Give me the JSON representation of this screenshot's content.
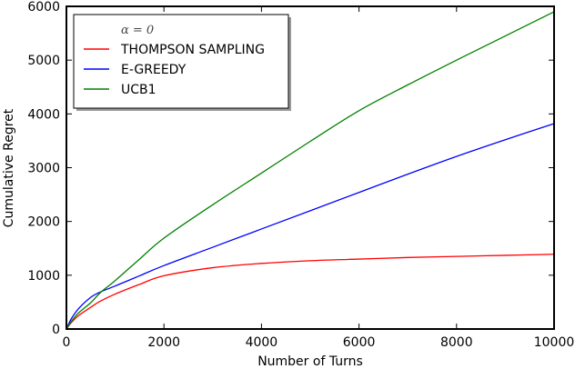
{
  "chart_data": {
    "type": "line",
    "title": "",
    "xlabel": "Number of Turns",
    "ylabel": "Cumulative Regret",
    "xlim": [
      0,
      10000
    ],
    "ylim": [
      0,
      6000
    ],
    "xticks": [
      0,
      2000,
      4000,
      6000,
      8000,
      10000
    ],
    "yticks": [
      0,
      1000,
      2000,
      3000,
      4000,
      5000,
      6000
    ],
    "grid": false,
    "legend_position": "upper left",
    "legend_title": "α = 0",
    "x": [
      0,
      100,
      250,
      500,
      700,
      1000,
      1500,
      2000,
      3000,
      4000,
      5000,
      6000,
      7000,
      8000,
      9000,
      10000
    ],
    "series": [
      {
        "name": "THOMPSON SAMPLING",
        "color": "#ff0000",
        "values": [
          0,
          120,
          250,
          405,
          520,
          650,
          830,
          990,
          1140,
          1220,
          1270,
          1300,
          1330,
          1350,
          1370,
          1390
        ]
      },
      {
        "name": "E-GREEDY",
        "color": "#0000ff",
        "values": [
          0,
          190,
          380,
          590,
          690,
          800,
          990,
          1180,
          1520,
          1860,
          2200,
          2540,
          2880,
          3210,
          3520,
          3820
        ]
      },
      {
        "name": "UCB1",
        "color": "#008000",
        "values": [
          0,
          140,
          300,
          490,
          680,
          900,
          1300,
          1690,
          2310,
          2900,
          3490,
          4060,
          4540,
          5000,
          5450,
          5900
        ]
      }
    ]
  }
}
